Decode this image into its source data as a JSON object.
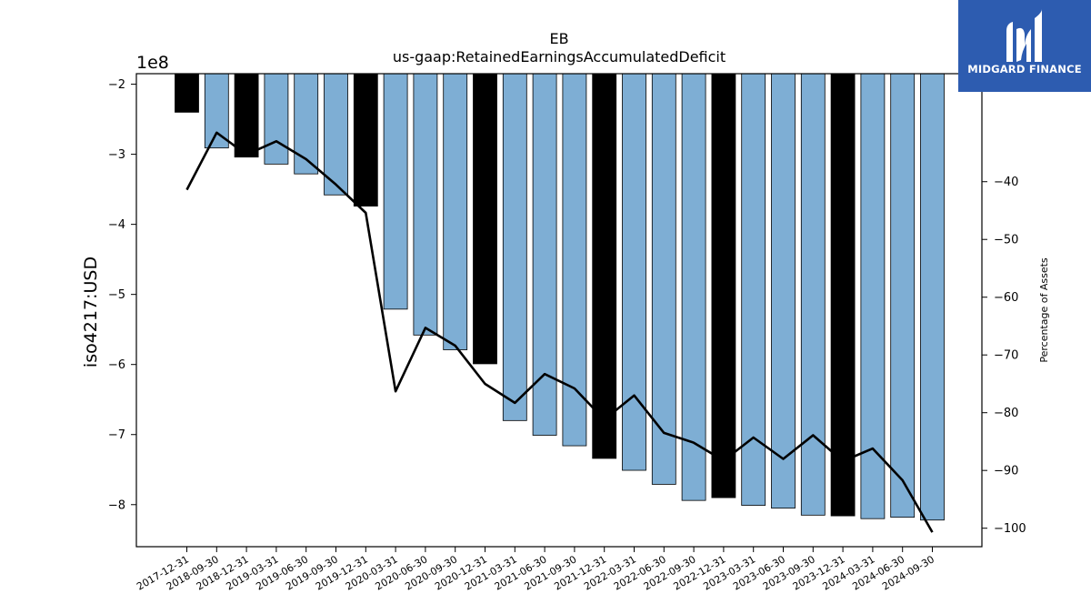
{
  "brand": {
    "name": "MIDGARD FINANCE",
    "background": "#2d5cb0",
    "icon": "midgard-m-logo-icon"
  },
  "chart_data": {
    "type": "bar",
    "title": "EB",
    "subtitle": "us-gaap:RetainedEarningsAccumulatedDeficit",
    "ylabel": "iso4217:USD",
    "y2label": "Percentage of Assets",
    "yscale_label": "1e8",
    "ylim": [
      -8.6,
      -1.85
    ],
    "y2lim": [
      -103.2,
      -21.3
    ],
    "yticks": [
      -8,
      -7,
      -6,
      -5,
      -4,
      -3,
      -2
    ],
    "y2ticks": [
      -100,
      -90,
      -80,
      -70,
      -60,
      -50,
      -40
    ],
    "categories": [
      "2017-12-31",
      "2018-09-30",
      "2018-12-31",
      "2019-03-31",
      "2019-06-30",
      "2019-09-30",
      "2019-12-31",
      "2020-03-31",
      "2020-06-30",
      "2020-09-30",
      "2020-12-31",
      "2021-03-31",
      "2021-06-30",
      "2021-09-30",
      "2021-12-31",
      "2022-03-31",
      "2022-06-30",
      "2022-09-30",
      "2022-12-31",
      "2023-03-31",
      "2023-06-30",
      "2023-09-30",
      "2023-12-31",
      "2024-03-31",
      "2024-06-30",
      "2024-09-30"
    ],
    "series": [
      {
        "values": [
          -2.4,
          -2.91,
          -3.04,
          -3.14,
          -3.28,
          -3.58,
          -3.74,
          -5.21,
          -5.58,
          -5.79,
          -5.99,
          -6.8,
          -7.01,
          -7.16,
          -7.34,
          -7.51,
          -7.71,
          -7.94,
          -7.9,
          -8.01,
          -8.05,
          -8.15,
          -8.16,
          -8.2,
          -8.18,
          -8.22
        ]
      },
      {
        "axis": "right",
        "values": [
          -41.4,
          -31.5,
          -35.3,
          -33.0,
          -36.1,
          -40.5,
          -45.4,
          -76.3,
          -65.3,
          -68.4,
          -75.0,
          -78.3,
          -73.3,
          -75.8,
          -81.2,
          -77.0,
          -83.5,
          -85.2,
          -88.3,
          -84.3,
          -88.0,
          -83.9,
          -88.4,
          -86.2,
          -91.7,
          -100.7
        ]
      }
    ],
    "highlight_indices": [
      0,
      2,
      6,
      10,
      14,
      18,
      22
    ],
    "colors": {
      "bar": "#7eaed4",
      "bar_highlight": "#000000",
      "line": "#000000"
    },
    "grid": false,
    "legend": "none"
  }
}
